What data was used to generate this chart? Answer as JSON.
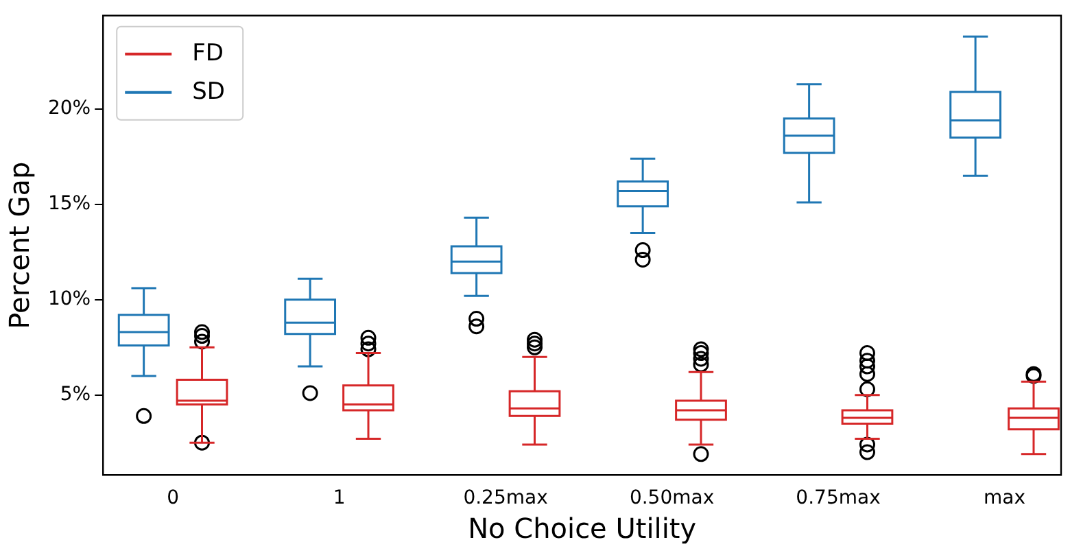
{
  "chart_data": {
    "type": "box",
    "xlabel": "No Choice Utility",
    "ylabel": "Percent Gap",
    "categories": [
      "0",
      "1",
      "0.25max",
      "0.50max",
      "0.75max",
      "max"
    ],
    "ylim": [
      0.8,
      24.9
    ],
    "yticks": [
      {
        "value": 5,
        "label": "5%"
      },
      {
        "value": 10,
        "label": "10%"
      },
      {
        "value": 15,
        "label": "15%"
      },
      {
        "value": 20,
        "label": "20%"
      }
    ],
    "grid": false,
    "legend": "top left",
    "series": [
      {
        "name": "FD",
        "color": "#d62728",
        "boxes": [
          {
            "low": 2.5,
            "q1": 4.5,
            "median": 4.7,
            "q3": 5.8,
            "high": 7.5,
            "outliers": [
              7.8,
              8.1,
              8.3,
              2.5
            ]
          },
          {
            "low": 2.7,
            "q1": 4.2,
            "median": 4.5,
            "q3": 5.5,
            "high": 7.2,
            "outliers": [
              7.4,
              7.7,
              8.0
            ]
          },
          {
            "low": 2.4,
            "q1": 3.9,
            "median": 4.3,
            "q3": 5.2,
            "high": 7.0,
            "outliers": [
              7.5,
              7.7,
              7.9
            ]
          },
          {
            "low": 2.4,
            "q1": 3.7,
            "median": 4.2,
            "q3": 4.7,
            "high": 6.2,
            "outliers": [
              6.6,
              6.9,
              7.2,
              7.4,
              1.9
            ]
          },
          {
            "low": 2.7,
            "q1": 3.5,
            "median": 3.8,
            "q3": 4.2,
            "high": 5.0,
            "outliers": [
              5.3,
              6.1,
              6.5,
              6.8,
              7.2,
              2.4,
              2.0
            ]
          },
          {
            "low": 1.9,
            "q1": 3.2,
            "median": 3.8,
            "q3": 4.3,
            "high": 5.7,
            "outliers": [
              6.0,
              6.1
            ]
          }
        ]
      },
      {
        "name": "SD",
        "color": "#1f77b4",
        "boxes": [
          {
            "low": 6.0,
            "q1": 7.6,
            "median": 8.3,
            "q3": 9.2,
            "high": 10.6,
            "outliers": [
              3.9
            ]
          },
          {
            "low": 6.5,
            "q1": 8.2,
            "median": 8.8,
            "q3": 10.0,
            "high": 11.1,
            "outliers": [
              5.1
            ]
          },
          {
            "low": 10.2,
            "q1": 11.4,
            "median": 12.0,
            "q3": 12.8,
            "high": 14.3,
            "outliers": [
              9.0,
              8.6
            ]
          },
          {
            "low": 13.5,
            "q1": 14.9,
            "median": 15.7,
            "q3": 16.2,
            "high": 17.4,
            "outliers": [
              12.6,
              12.1
            ]
          },
          {
            "low": 15.1,
            "q1": 17.7,
            "median": 18.6,
            "q3": 19.5,
            "high": 21.3
          },
          {
            "low": 16.5,
            "q1": 18.5,
            "median": 19.4,
            "q3": 20.9,
            "high": 23.8
          }
        ]
      }
    ]
  }
}
